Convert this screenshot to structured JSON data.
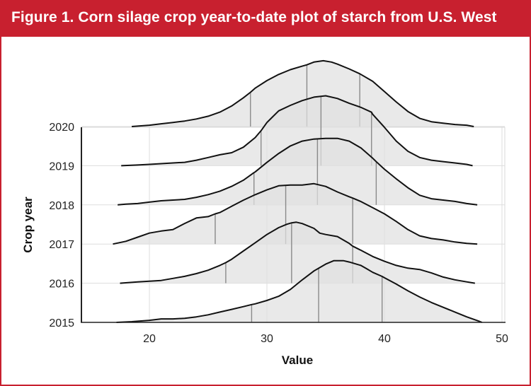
{
  "figure": {
    "title": "Figure 1. Corn silage crop year-to-date plot of starch from U.S. West",
    "accent_color": "#c8202f"
  },
  "chart_data": {
    "type": "ridgeline",
    "xlabel": "Value",
    "ylabel": "Crop year",
    "xlim": [
      15,
      50
    ],
    "x_ticks": [
      20,
      30,
      40,
      50
    ],
    "grid": true,
    "categories": [
      "2015",
      "2016",
      "2017",
      "2018",
      "2019",
      "2020"
    ],
    "series": [
      {
        "name": "2015",
        "quantiles": [
          28.7,
          34.4,
          39.8
        ],
        "density": [
          [
            17.2,
            0.0
          ],
          [
            18.5,
            0.01
          ],
          [
            20,
            0.03
          ],
          [
            21,
            0.05
          ],
          [
            22,
            0.05
          ],
          [
            23,
            0.06
          ],
          [
            24,
            0.08
          ],
          [
            25,
            0.11
          ],
          [
            26,
            0.15
          ],
          [
            27,
            0.19
          ],
          [
            28,
            0.23
          ],
          [
            28.7,
            0.26
          ],
          [
            29,
            0.27
          ],
          [
            30,
            0.32
          ],
          [
            31,
            0.38
          ],
          [
            32,
            0.48
          ],
          [
            33,
            0.62
          ],
          [
            34,
            0.75
          ],
          [
            35,
            0.85
          ],
          [
            35.7,
            0.9
          ],
          [
            36.5,
            0.9
          ],
          [
            37,
            0.88
          ],
          [
            38,
            0.83
          ],
          [
            38.5,
            0.78
          ],
          [
            39,
            0.73
          ],
          [
            39.8,
            0.67
          ],
          [
            40,
            0.65
          ],
          [
            41,
            0.56
          ],
          [
            42,
            0.46
          ],
          [
            43,
            0.37
          ],
          [
            44,
            0.29
          ],
          [
            45,
            0.22
          ],
          [
            46,
            0.15
          ],
          [
            47,
            0.08
          ],
          [
            48,
            0.02
          ],
          [
            48.3,
            0.0
          ]
        ]
      },
      {
        "name": "2016",
        "quantiles": [
          26.5,
          32.1,
          37.3
        ],
        "density": [
          [
            17.5,
            0.0
          ],
          [
            19,
            0.02
          ],
          [
            20,
            0.03
          ],
          [
            21,
            0.04
          ],
          [
            22,
            0.07
          ],
          [
            23,
            0.1
          ],
          [
            24,
            0.14
          ],
          [
            25,
            0.19
          ],
          [
            26,
            0.26
          ],
          [
            26.5,
            0.3
          ],
          [
            27,
            0.35
          ],
          [
            28,
            0.47
          ],
          [
            29,
            0.59
          ],
          [
            30,
            0.71
          ],
          [
            31,
            0.81
          ],
          [
            31.7,
            0.86
          ],
          [
            32.1,
            0.88
          ],
          [
            32.5,
            0.89
          ],
          [
            33,
            0.87
          ],
          [
            34,
            0.8
          ],
          [
            34.5,
            0.73
          ],
          [
            35,
            0.71
          ],
          [
            36,
            0.68
          ],
          [
            37,
            0.58
          ],
          [
            37.3,
            0.54
          ],
          [
            38,
            0.48
          ],
          [
            39,
            0.39
          ],
          [
            40,
            0.32
          ],
          [
            41,
            0.26
          ],
          [
            42,
            0.22
          ],
          [
            43,
            0.2
          ],
          [
            44,
            0.15
          ],
          [
            45,
            0.09
          ],
          [
            46,
            0.05
          ],
          [
            47,
            0.02
          ],
          [
            47.7,
            0.0
          ]
        ]
      },
      {
        "name": "2017",
        "quantiles": [
          25.6,
          31.6,
          37.3
        ],
        "density": [
          [
            16.9,
            0.0
          ],
          [
            18,
            0.04
          ],
          [
            19,
            0.1
          ],
          [
            20,
            0.16
          ],
          [
            21,
            0.19
          ],
          [
            22,
            0.21
          ],
          [
            23,
            0.3
          ],
          [
            24,
            0.38
          ],
          [
            25,
            0.4
          ],
          [
            25.6,
            0.44
          ],
          [
            26,
            0.46
          ],
          [
            27,
            0.55
          ],
          [
            28,
            0.64
          ],
          [
            29,
            0.72
          ],
          [
            30,
            0.79
          ],
          [
            31,
            0.85
          ],
          [
            32,
            0.86
          ],
          [
            33,
            0.86
          ],
          [
            34,
            0.88
          ],
          [
            35,
            0.84
          ],
          [
            36,
            0.76
          ],
          [
            37,
            0.69
          ],
          [
            37.3,
            0.67
          ],
          [
            38,
            0.62
          ],
          [
            39,
            0.53
          ],
          [
            40,
            0.44
          ],
          [
            41,
            0.33
          ],
          [
            42,
            0.21
          ],
          [
            43,
            0.12
          ],
          [
            44,
            0.08
          ],
          [
            45,
            0.06
          ],
          [
            46,
            0.03
          ],
          [
            47,
            0.01
          ],
          [
            47.9,
            0.0
          ]
        ]
      },
      {
        "name": "2018",
        "quantiles": [
          28.9,
          34.3,
          39.3
        ],
        "density": [
          [
            17.3,
            0.0
          ],
          [
            18,
            0.01
          ],
          [
            19,
            0.02
          ],
          [
            20,
            0.04
          ],
          [
            21,
            0.06
          ],
          [
            22,
            0.07
          ],
          [
            23,
            0.08
          ],
          [
            24,
            0.11
          ],
          [
            25,
            0.15
          ],
          [
            26,
            0.2
          ],
          [
            27,
            0.27
          ],
          [
            28,
            0.36
          ],
          [
            28.9,
            0.47
          ],
          [
            29,
            0.48
          ],
          [
            30,
            0.62
          ],
          [
            31,
            0.75
          ],
          [
            32,
            0.86
          ],
          [
            33,
            0.93
          ],
          [
            34,
            0.96
          ],
          [
            35,
            0.97
          ],
          [
            36,
            0.97
          ],
          [
            37,
            0.93
          ],
          [
            38,
            0.83
          ],
          [
            39,
            0.68
          ],
          [
            39.3,
            0.63
          ],
          [
            40,
            0.52
          ],
          [
            41,
            0.38
          ],
          [
            42,
            0.25
          ],
          [
            43,
            0.14
          ],
          [
            44,
            0.09
          ],
          [
            45,
            0.07
          ],
          [
            46,
            0.05
          ],
          [
            47,
            0.02
          ],
          [
            47.9,
            0.0
          ]
        ]
      },
      {
        "name": "2019",
        "quantiles": [
          29.5,
          34.6,
          38.9
        ],
        "density": [
          [
            17.6,
            0.0
          ],
          [
            19,
            0.01
          ],
          [
            20,
            0.02
          ],
          [
            21,
            0.03
          ],
          [
            22,
            0.04
          ],
          [
            23,
            0.05
          ],
          [
            24,
            0.08
          ],
          [
            25,
            0.12
          ],
          [
            26,
            0.16
          ],
          [
            27,
            0.19
          ],
          [
            28,
            0.27
          ],
          [
            29,
            0.41
          ],
          [
            29.5,
            0.51
          ],
          [
            30,
            0.63
          ],
          [
            31,
            0.8
          ],
          [
            32,
            0.88
          ],
          [
            33,
            0.95
          ],
          [
            34,
            1.0
          ],
          [
            35,
            1.02
          ],
          [
            36,
            0.98
          ],
          [
            37,
            0.91
          ],
          [
            38,
            0.85
          ],
          [
            38.9,
            0.78
          ],
          [
            39,
            0.75
          ],
          [
            40,
            0.56
          ],
          [
            41,
            0.36
          ],
          [
            42,
            0.21
          ],
          [
            43,
            0.12
          ],
          [
            44,
            0.08
          ],
          [
            45,
            0.06
          ],
          [
            46,
            0.04
          ],
          [
            47,
            0.02
          ],
          [
            47.5,
            0.0
          ]
        ]
      },
      {
        "name": "2020",
        "quantiles": [
          28.6,
          33.4,
          37.9
        ],
        "density": [
          [
            18.5,
            0.0
          ],
          [
            20,
            0.02
          ],
          [
            21,
            0.04
          ],
          [
            22,
            0.06
          ],
          [
            23,
            0.08
          ],
          [
            24,
            0.11
          ],
          [
            25,
            0.15
          ],
          [
            26,
            0.21
          ],
          [
            27,
            0.3
          ],
          [
            28,
            0.42
          ],
          [
            28.6,
            0.5
          ],
          [
            29,
            0.56
          ],
          [
            30,
            0.67
          ],
          [
            31,
            0.76
          ],
          [
            32,
            0.83
          ],
          [
            33,
            0.88
          ],
          [
            33.4,
            0.9
          ],
          [
            34,
            0.94
          ],
          [
            34.8,
            0.96
          ],
          [
            35.5,
            0.94
          ],
          [
            36,
            0.91
          ],
          [
            37,
            0.84
          ],
          [
            37.9,
            0.77
          ],
          [
            38,
            0.76
          ],
          [
            39,
            0.66
          ],
          [
            40,
            0.51
          ],
          [
            41,
            0.36
          ],
          [
            42,
            0.22
          ],
          [
            43,
            0.12
          ],
          [
            44,
            0.07
          ],
          [
            45,
            0.05
          ],
          [
            46,
            0.03
          ],
          [
            47,
            0.02
          ],
          [
            47.6,
            0.0
          ]
        ]
      }
    ]
  }
}
